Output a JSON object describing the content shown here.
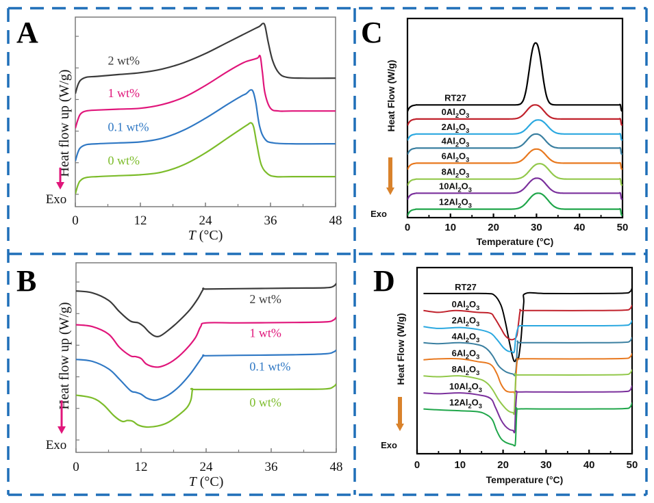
{
  "figure": {
    "border_color": "#1f6fb8",
    "panels": [
      "A",
      "B",
      "C",
      "D"
    ]
  },
  "chart_data": [
    {
      "panel": "A",
      "type": "line",
      "title": "",
      "xlabel": "T (°C)",
      "xlabel_italic": "T",
      "xlabel_rest": " (°C)",
      "ylabel": "Heat flow up (W/g)",
      "exo_label": "Exo",
      "arrow_color": "#e0157a",
      "xlim": [
        0,
        48
      ],
      "xticks": [
        0,
        12,
        24,
        36,
        48
      ],
      "xtick_labels": [
        "0",
        "12",
        "24",
        "36",
        "48"
      ],
      "ylim": [
        0,
        10
      ],
      "grid": false,
      "legend": "inline-labels",
      "series": [
        {
          "name": "2 wt%",
          "color": "#3a3a3a",
          "label_at": [
            6,
            8.0
          ],
          "x": [
            0,
            0.5,
            1,
            2,
            4,
            8,
            12,
            16,
            20,
            24,
            28,
            31,
            33,
            34,
            34.6,
            35,
            35.6,
            36.4,
            37.5,
            39,
            42,
            48
          ],
          "y": [
            6.4,
            6.9,
            7.15,
            7.3,
            7.35,
            7.45,
            7.55,
            7.75,
            8.1,
            8.6,
            9.2,
            9.65,
            9.95,
            10.1,
            10.25,
            10.1,
            9.2,
            8.2,
            7.55,
            7.3,
            7.25,
            7.25
          ]
        },
        {
          "name": "1 wt%",
          "color": "#e0157a",
          "label_at": [
            6,
            6.2
          ],
          "x": [
            0,
            0.5,
            1,
            2,
            4,
            8,
            12,
            16,
            20,
            24,
            28,
            31,
            32.5,
            33.6,
            34.1,
            34.5,
            35,
            36,
            37.5,
            40,
            48
          ],
          "y": [
            4.5,
            5.0,
            5.3,
            5.45,
            5.5,
            5.55,
            5.6,
            5.8,
            6.2,
            6.85,
            7.6,
            8.1,
            8.25,
            8.35,
            8.45,
            7.6,
            6.4,
            5.6,
            5.45,
            5.45,
            5.45
          ]
        },
        {
          "name": "0.1 wt%",
          "color": "#2f78c4",
          "label_at": [
            6,
            4.35
          ],
          "x": [
            0,
            0.5,
            1,
            2,
            4,
            8,
            12,
            16,
            20,
            24,
            28,
            30.5,
            31.5,
            32.3,
            32.8,
            33.3,
            34,
            35,
            36.5,
            40,
            48
          ],
          "y": [
            2.7,
            3.2,
            3.45,
            3.6,
            3.65,
            3.7,
            3.75,
            3.95,
            4.4,
            5.05,
            5.8,
            6.25,
            6.4,
            6.6,
            6.5,
            5.9,
            4.6,
            3.9,
            3.7,
            3.65,
            3.65
          ]
        },
        {
          "name": "0 wt%",
          "color": "#7cbc2a",
          "label_at": [
            6,
            2.5
          ],
          "x": [
            0,
            0.5,
            1,
            2,
            4,
            8,
            12,
            16,
            20,
            24,
            28,
            30.5,
            31.8,
            32.4,
            32.9,
            33.5,
            34.3,
            35.5,
            37,
            40,
            48
          ],
          "y": [
            0.9,
            1.4,
            1.65,
            1.8,
            1.85,
            1.9,
            1.95,
            2.1,
            2.5,
            3.15,
            3.95,
            4.45,
            4.7,
            4.8,
            4.55,
            3.6,
            2.5,
            2.0,
            1.85,
            1.85,
            1.85
          ]
        }
      ]
    },
    {
      "panel": "B",
      "type": "line",
      "title": "",
      "xlabel": "T (°C)",
      "xlabel_italic": "T",
      "xlabel_rest": " (°C)",
      "ylabel": "Heat flow up (W/g)",
      "exo_label": "Exo",
      "arrow_color": "#e0157a",
      "xlim": [
        0,
        48
      ],
      "xticks": [
        0,
        12,
        24,
        36,
        48
      ],
      "xtick_labels": [
        "0",
        "12",
        "24",
        "36",
        "48"
      ],
      "ylim": [
        0,
        10
      ],
      "grid": false,
      "legend": "inline-labels",
      "series": [
        {
          "name": "2 wt%",
          "color": "#3a3a3a",
          "label_at": [
            32,
            8.15
          ],
          "x": [
            0,
            3,
            6,
            8,
            10,
            11.5,
            12.5,
            13.5,
            14.5,
            15.5,
            17,
            19,
            21,
            22.5,
            23.5,
            24,
            30,
            40,
            46,
            47.5,
            48
          ],
          "y": [
            8.8,
            8.7,
            8.3,
            7.7,
            7.2,
            7.1,
            6.9,
            6.6,
            6.4,
            6.4,
            6.7,
            7.2,
            7.8,
            8.4,
            8.9,
            8.9,
            8.92,
            8.95,
            8.97,
            9.05,
            9.2
          ]
        },
        {
          "name": "1 wt%",
          "color": "#e0157a",
          "label_at": [
            32,
            6.35
          ],
          "x": [
            0,
            3,
            6,
            8,
            10,
            11,
            12,
            13,
            14.5,
            16,
            18,
            20,
            22,
            23,
            24,
            30,
            40,
            46,
            47.5,
            48
          ],
          "y": [
            7.0,
            6.9,
            6.5,
            5.8,
            5.35,
            5.3,
            5.2,
            4.9,
            4.75,
            4.8,
            5.1,
            5.6,
            6.3,
            6.9,
            7.1,
            7.1,
            7.12,
            7.15,
            7.25,
            7.4
          ]
        },
        {
          "name": "0.1 wt%",
          "color": "#2f78c4",
          "label_at": [
            32,
            4.55
          ],
          "x": [
            0,
            3,
            6,
            8,
            10,
            11,
            12,
            13,
            14,
            15,
            17,
            19,
            21,
            22.5,
            23.5,
            24,
            30,
            40,
            46,
            47.5,
            48
          ],
          "y": [
            5.15,
            5.05,
            4.65,
            4.1,
            3.5,
            3.4,
            3.3,
            3.1,
            3.0,
            3.0,
            3.25,
            3.7,
            4.35,
            4.95,
            5.35,
            5.35,
            5.37,
            5.4,
            5.45,
            5.55,
            5.65
          ]
        },
        {
          "name": "0 wt%",
          "color": "#7cbc2a",
          "label_at": [
            32,
            2.65
          ],
          "x": [
            0,
            3,
            5,
            7,
            8.5,
            9.5,
            10.5,
            11.5,
            13,
            15,
            17,
            19,
            20.5,
            21.2,
            21.5,
            22,
            30,
            40,
            46,
            47.5,
            48
          ],
          "y": [
            3.25,
            3.1,
            2.75,
            2.15,
            1.85,
            1.9,
            1.85,
            1.65,
            1.55,
            1.6,
            1.8,
            2.2,
            2.6,
            3.0,
            3.55,
            3.55,
            3.55,
            3.56,
            3.58,
            3.7,
            3.85
          ]
        }
      ]
    },
    {
      "panel": "C",
      "type": "line",
      "title": "",
      "xlabel": "Temperature (°C)",
      "ylabel": "Heat Flow (W/g)",
      "exo_label": "Exo",
      "arrow_color": "#d9822b",
      "xlim": [
        0,
        50
      ],
      "xticks": [
        0,
        10,
        20,
        30,
        40,
        50
      ],
      "xtick_labels": [
        "0",
        "10",
        "20",
        "30",
        "40",
        "50"
      ],
      "minor_xticks": [
        5,
        15,
        25,
        35,
        45
      ],
      "ylim": [
        0,
        10
      ],
      "grid": false,
      "legend": "inline-labels",
      "series": [
        {
          "name": "RT27",
          "sub": "",
          "color": "#000000",
          "baseline": 6.0,
          "peak_x": 29.8,
          "peak_h": 3.3,
          "width": 1.9
        },
        {
          "name": "0Al",
          "sub": "2",
          "tail": "O",
          "sub2": "3",
          "color": "#c0202a",
          "baseline": 5.25,
          "peak_x": 29.7,
          "peak_h": 0.75,
          "width": 2.6
        },
        {
          "name": "2Al",
          "sub": "2",
          "tail": "O",
          "sub2": "3",
          "color": "#2aa8e0",
          "baseline": 4.45,
          "peak_x": 30.4,
          "peak_h": 0.75,
          "width": 2.8
        },
        {
          "name": "4Al",
          "sub": "2",
          "tail": "O",
          "sub2": "3",
          "color": "#3a7fa0",
          "baseline": 3.7,
          "peak_x": 29.9,
          "peak_h": 0.75,
          "width": 2.7
        },
        {
          "name": "6Al",
          "sub": "2",
          "tail": "O",
          "sub2": "3",
          "color": "#e8781e",
          "baseline": 2.9,
          "peak_x": 30.0,
          "peak_h": 0.75,
          "width": 2.8
        },
        {
          "name": "8Al",
          "sub": "2",
          "tail": "O",
          "sub2": "3",
          "color": "#92c84a",
          "baseline": 2.05,
          "peak_x": 30.7,
          "peak_h": 0.82,
          "width": 2.9
        },
        {
          "name": "10Al",
          "sub": "2",
          "tail": "O",
          "sub2": "3",
          "color": "#7a2f9c",
          "baseline": 1.3,
          "peak_x": 30.1,
          "peak_h": 0.8,
          "width": 2.8
        },
        {
          "name": "12Al",
          "sub": "2",
          "tail": "O",
          "sub2": "3",
          "color": "#1fa64a",
          "baseline": 0.45,
          "peak_x": 30.4,
          "peak_h": 0.85,
          "width": 2.9
        }
      ]
    },
    {
      "panel": "D",
      "type": "line",
      "title": "",
      "xlabel": "Temperature (°C)",
      "ylabel": "Heat Flow (W/g)",
      "exo_label": "Exo",
      "arrow_color": "#d9822b",
      "xlim": [
        0,
        50
      ],
      "xticks": [
        0,
        10,
        20,
        30,
        40,
        50
      ],
      "xtick_labels": [
        "0",
        "10",
        "20",
        "30",
        "40",
        "50"
      ],
      "minor_xticks": [
        5,
        15,
        25,
        35,
        45
      ],
      "ylim": [
        0,
        10
      ],
      "grid": false,
      "legend": "inline-labels",
      "series": [
        {
          "name": "RT27",
          "sub": "",
          "color": "#000000",
          "x": [
            1.5,
            10,
            16,
            18,
            19.5,
            20.5,
            21.5,
            22.5,
            23.2,
            23.6,
            24.2,
            24.8,
            25.2,
            30,
            40,
            48,
            49.5,
            50
          ],
          "y": [
            8.95,
            8.95,
            8.95,
            8.85,
            8.3,
            7.4,
            6.2,
            5.2,
            5.35,
            5.35,
            6.5,
            8.4,
            8.95,
            8.95,
            8.95,
            8.97,
            9.05,
            9.25
          ]
        },
        {
          "name": "0Al",
          "sub": "2",
          "tail": "O",
          "sub2": "3",
          "color": "#c0202a",
          "x": [
            1.5,
            5,
            9,
            14,
            17,
            18,
            19.5,
            20.5,
            21.5,
            22.5,
            23.2,
            23.6,
            24.0,
            24.5,
            30,
            40,
            48,
            49.5,
            50
          ],
          "y": [
            8.0,
            7.9,
            8.0,
            7.9,
            7.85,
            7.6,
            7.0,
            6.6,
            6.4,
            6.4,
            6.6,
            7.3,
            8.0,
            8.0,
            8.0,
            8.0,
            8.02,
            8.1,
            8.3
          ]
        },
        {
          "name": "2Al",
          "sub": "2",
          "tail": "O",
          "sub2": "3",
          "color": "#2aa8e0",
          "x": [
            1.5,
            5,
            10,
            14,
            17,
            18.5,
            20,
            21,
            22,
            22.6,
            22.9,
            23.2,
            23.6,
            24.0,
            24.5,
            30,
            40,
            48,
            49.5,
            50
          ],
          "y": [
            7.1,
            7.0,
            7.05,
            6.95,
            6.75,
            6.4,
            5.95,
            5.75,
            5.7,
            5.7,
            6.4,
            6.8,
            7.1,
            7.15,
            7.15,
            7.15,
            7.15,
            7.17,
            7.25,
            7.45
          ]
        },
        {
          "name": "4Al",
          "sub": "2",
          "tail": "O",
          "sub2": "3",
          "color": "#3a7fa0",
          "x": [
            1.5,
            5,
            10,
            14,
            16,
            17.5,
            19,
            20.5,
            21.5,
            22.3,
            22.8,
            23.1,
            23.4,
            24,
            30,
            40,
            48,
            49.5,
            50
          ],
          "y": [
            6.2,
            6.15,
            6.2,
            6.1,
            5.9,
            5.5,
            4.9,
            4.6,
            4.5,
            4.45,
            4.4,
            5.0,
            6.2,
            6.2,
            6.2,
            6.2,
            6.22,
            6.3,
            6.5
          ]
        },
        {
          "name": "6Al",
          "sub": "2",
          "tail": "O",
          "sub2": "3",
          "color": "#e8781e",
          "x": [
            1.5,
            5,
            10,
            14,
            17,
            18.5,
            19.5,
            20.5,
            21.5,
            22.5,
            22.8,
            23.0,
            23.3,
            23.8,
            30,
            40,
            48,
            49.5,
            50
          ],
          "y": [
            5.25,
            5.3,
            5.3,
            5.15,
            5.0,
            4.5,
            3.9,
            3.55,
            3.45,
            3.45,
            3.4,
            4.3,
            5.2,
            5.3,
            5.3,
            5.3,
            5.32,
            5.4,
            5.6
          ]
        },
        {
          "name": "8Al",
          "sub": "2",
          "tail": "O",
          "sub2": "3",
          "color": "#92c84a",
          "x": [
            1.5,
            5,
            10,
            14,
            16,
            17.5,
            19,
            20.5,
            21.5,
            22.3,
            22.6,
            22.8,
            23.0,
            23.3,
            30,
            40,
            48,
            49.5,
            50
          ],
          "y": [
            4.35,
            4.3,
            4.35,
            4.2,
            4.0,
            3.6,
            3.0,
            2.55,
            2.35,
            2.3,
            2.3,
            3.5,
            4.4,
            4.4,
            4.4,
            4.4,
            4.42,
            4.5,
            4.7
          ]
        },
        {
          "name": "10Al",
          "sub": "2",
          "tail": "O",
          "sub2": "3",
          "color": "#7a2f9c",
          "x": [
            1.5,
            5,
            10,
            14,
            17,
            18.2,
            19.5,
            20.5,
            21.5,
            22.3,
            22.7,
            22.9,
            23.2,
            23.6,
            30,
            40,
            48,
            49.5,
            50
          ],
          "y": [
            3.4,
            3.35,
            3.4,
            3.3,
            3.1,
            2.6,
            1.9,
            1.55,
            1.35,
            1.3,
            1.25,
            2.4,
            3.4,
            3.45,
            3.45,
            3.45,
            3.47,
            3.55,
            3.8
          ]
        },
        {
          "name": "12Al",
          "sub": "2",
          "tail": "O",
          "sub2": "3",
          "color": "#1fa64a",
          "x": [
            1.5,
            5,
            10,
            14,
            16,
            17.5,
            18.5,
            19.5,
            20.5,
            21.5,
            22.3,
            22.7,
            22.9,
            23.2,
            23.6,
            30,
            40,
            48,
            49.5,
            50
          ],
          "y": [
            2.5,
            2.45,
            2.4,
            2.35,
            2.2,
            1.9,
            1.3,
            0.85,
            0.65,
            0.55,
            0.5,
            0.45,
            0.7,
            2.4,
            2.5,
            2.5,
            2.5,
            2.52,
            2.6,
            2.85
          ]
        }
      ]
    }
  ]
}
